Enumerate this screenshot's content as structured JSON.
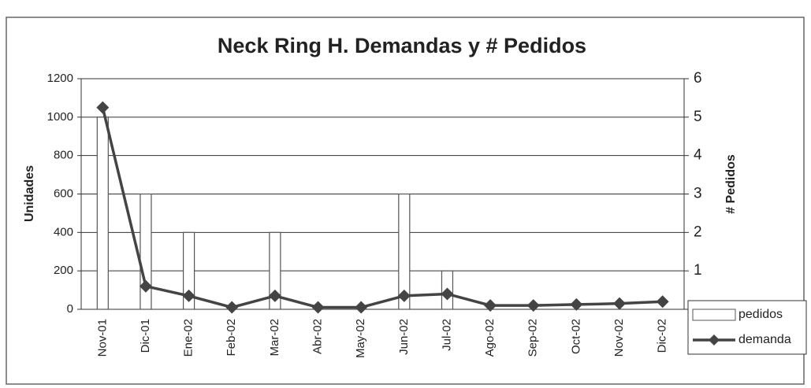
{
  "chart_data": {
    "type": "bar+line",
    "title": "Neck Ring H. Demandas y # Pedidos",
    "categories": [
      "Nov-01",
      "Dic-01",
      "Ene-02",
      "Feb-02",
      "Mar-02",
      "Abr-02",
      "May-02",
      "Jun-02",
      "Jul-02",
      "Ago-02",
      "Sep-02",
      "Oct-02",
      "Nov-02",
      "Dic-02"
    ],
    "ylabel": "Unidades",
    "y2label": "# Pedidos",
    "ylim": [
      0,
      1200
    ],
    "yticks": [
      0,
      200,
      400,
      600,
      800,
      1000,
      1200
    ],
    "y2lim": [
      0,
      6
    ],
    "y2ticks": [
      0,
      1,
      2,
      3,
      4,
      5,
      6
    ],
    "grid": true,
    "legend": "lower right",
    "series": [
      {
        "name": "pedidos",
        "type": "bar",
        "axis": "y2",
        "color": "#ffffff",
        "values": [
          5,
          3,
          2,
          0,
          2,
          0,
          0,
          3,
          1,
          0,
          0,
          0,
          0,
          0
        ]
      },
      {
        "name": "demanda",
        "type": "line",
        "axis": "y",
        "color": "#444444",
        "values": [
          1050,
          120,
          70,
          10,
          70,
          10,
          10,
          70,
          80,
          20,
          20,
          25,
          30,
          40
        ]
      }
    ]
  }
}
